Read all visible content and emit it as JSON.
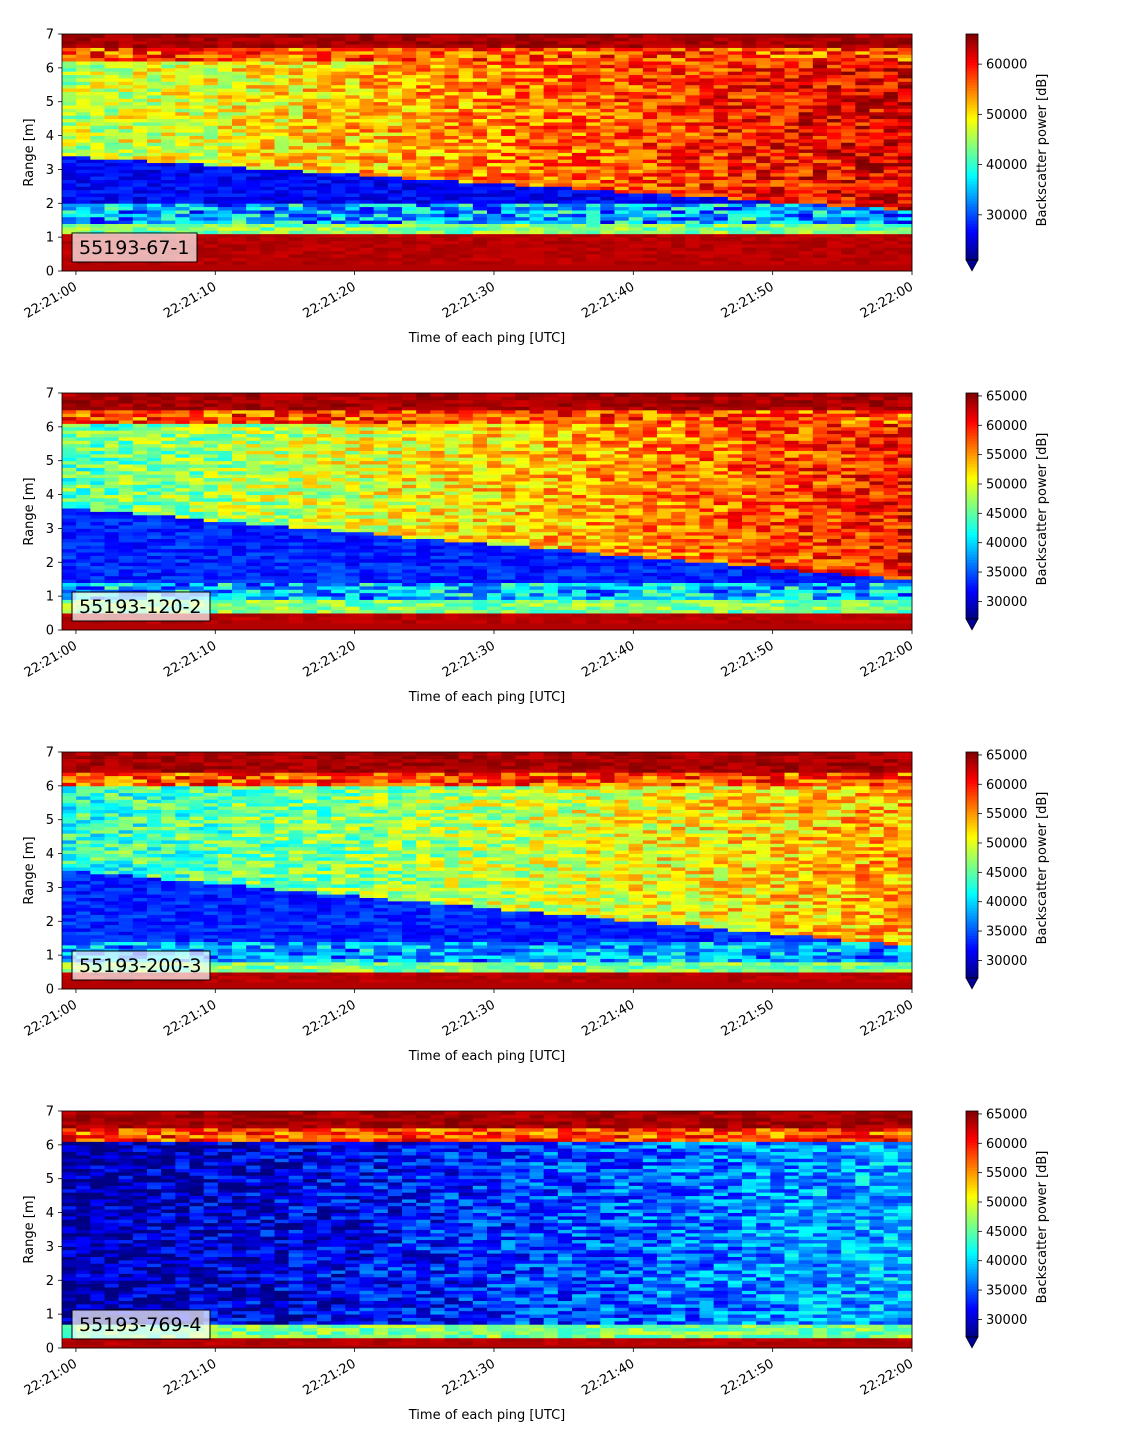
{
  "colorbar_label": "Backscatter power [dB]",
  "chart_data": [
    {
      "type": "heatmap",
      "badge": "55193-67-1",
      "xlabel": "Time of each ping [UTC]",
      "ylabel": "Range [m]",
      "xlim": [
        "22:20:59",
        "22:22:00"
      ],
      "ylim": [
        0,
        7
      ],
      "x_ticks": [
        "22:21:00",
        "22:21:10",
        "22:21:20",
        "22:21:30",
        "22:21:40",
        "22:21:50",
        "22:22:00"
      ],
      "y_ticks": [
        0,
        1,
        2,
        3,
        4,
        5,
        6,
        7
      ],
      "colorbar": {
        "colormap": "jet",
        "min": 21000,
        "max": 66000,
        "extend": "min",
        "ticks": [
          30000,
          40000,
          50000,
          60000
        ]
      },
      "profile": {
        "bottom_band": [
          0.25,
          1.1
        ],
        "surface": 6.6,
        "interface_start": 3.4,
        "interface_end": 1.8,
        "upper_start": 0.55,
        "upper_end": 0.9,
        "lower_level": 0.06,
        "mid_level": 0.35
      }
    },
    {
      "type": "heatmap",
      "badge": "55193-120-2",
      "xlabel": "Time of each ping [UTC]",
      "ylabel": "Range [m]",
      "xlim": [
        "22:20:59",
        "22:22:00"
      ],
      "ylim": [
        0,
        7
      ],
      "x_ticks": [
        "22:21:00",
        "22:21:10",
        "22:21:20",
        "22:21:30",
        "22:21:40",
        "22:21:50",
        "22:22:00"
      ],
      "y_ticks": [
        0,
        1,
        2,
        3,
        4,
        5,
        6,
        7
      ],
      "colorbar": {
        "colormap": "jet",
        "min": 27000,
        "max": 65500,
        "extend": "min",
        "ticks": [
          30000,
          35000,
          40000,
          45000,
          50000,
          55000,
          60000,
          65000
        ]
      },
      "profile": {
        "bottom_band": [
          0.2,
          0.55
        ],
        "surface": 6.5,
        "interface_start": 3.6,
        "interface_end": 1.5,
        "upper_start": 0.45,
        "upper_end": 0.85,
        "lower_level": 0.1,
        "mid_level": 0.3
      }
    },
    {
      "type": "heatmap",
      "badge": "55193-200-3",
      "xlabel": "Time of each ping [UTC]",
      "ylabel": "Range [m]",
      "xlim": [
        "22:20:59",
        "22:22:00"
      ],
      "ylim": [
        0,
        7
      ],
      "x_ticks": [
        "22:21:00",
        "22:21:10",
        "22:21:20",
        "22:21:30",
        "22:21:40",
        "22:21:50",
        "22:22:00"
      ],
      "y_ticks": [
        0,
        1,
        2,
        3,
        4,
        5,
        6,
        7
      ],
      "colorbar": {
        "colormap": "jet",
        "min": 27000,
        "max": 65500,
        "extend": "min",
        "ticks": [
          30000,
          35000,
          40000,
          45000,
          50000,
          55000,
          60000,
          65000
        ]
      },
      "profile": {
        "bottom_band": [
          0.2,
          0.5
        ],
        "surface": 6.4,
        "interface_start": 3.5,
        "interface_end": 1.3,
        "upper_start": 0.4,
        "upper_end": 0.7,
        "lower_level": 0.1,
        "mid_level": 0.25
      }
    },
    {
      "type": "heatmap",
      "badge": "55193-769-4",
      "xlabel": "Time of each ping [UTC]",
      "ylabel": "Range [m]",
      "xlim": [
        "22:20:59",
        "22:22:00"
      ],
      "ylim": [
        0,
        7
      ],
      "x_ticks": [
        "22:21:00",
        "22:21:10",
        "22:21:20",
        "22:21:30",
        "22:21:40",
        "22:21:50",
        "22:22:00"
      ],
      "y_ticks": [
        0,
        1,
        2,
        3,
        4,
        5,
        6,
        7
      ],
      "colorbar": {
        "colormap": "jet",
        "min": 27000,
        "max": 65500,
        "extend": "min",
        "ticks": [
          30000,
          35000,
          40000,
          45000,
          50000,
          55000,
          60000,
          65000
        ]
      },
      "profile": {
        "bottom_band": [
          0.15,
          0.35
        ],
        "surface": 6.5,
        "interface_start": 0.0,
        "interface_end": 0.0,
        "upper_start": 0.02,
        "upper_end": 0.3,
        "lower_level": 0.03,
        "mid_level": 0.1
      }
    }
  ]
}
